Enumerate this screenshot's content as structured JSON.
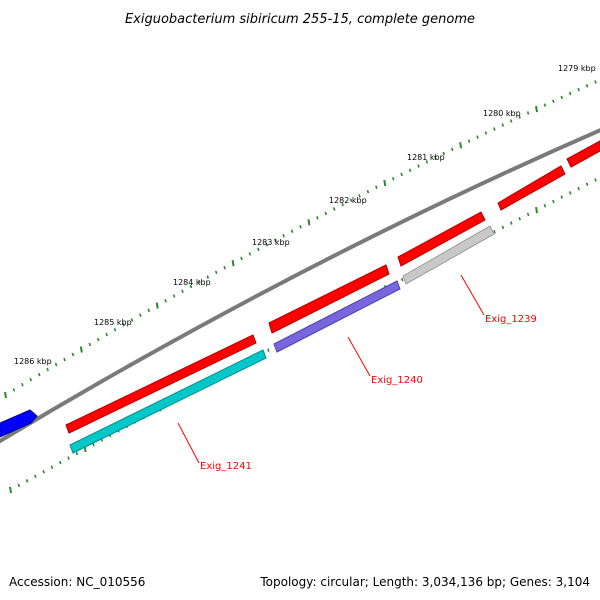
{
  "title": "Exiguobacterium sibiricum 255-15, complete genome",
  "footer": {
    "accession": "Accession: NC_010556",
    "topology": "Topology: circular; Length: 3,034,136 bp; Genes: 3,104"
  },
  "ruler": {
    "labels": [
      "1279 kbp",
      "1280 kbp",
      "1281 kbp",
      "1282 kbp",
      "1283 kbp",
      "1284 kbp",
      "1285 kbp",
      "1286 kbp"
    ],
    "tick_color": "#2a8a2a"
  },
  "colors": {
    "backbone": "#7a7a7a",
    "forward_gene": "#ff0000",
    "reverse_gene_1": "#00c8c8",
    "reverse_gene_2": "#7766dd",
    "reverse_gene_3": "#c8c8c8",
    "other_gene": "#0000ff",
    "label": "#ff0000"
  },
  "genes": [
    {
      "label": "Exig_1239",
      "color": "#c8c8c8"
    },
    {
      "label": "Exig_1240",
      "color": "#7766dd"
    },
    {
      "label": "Exig_1241",
      "color": "#00c8c8"
    }
  ]
}
